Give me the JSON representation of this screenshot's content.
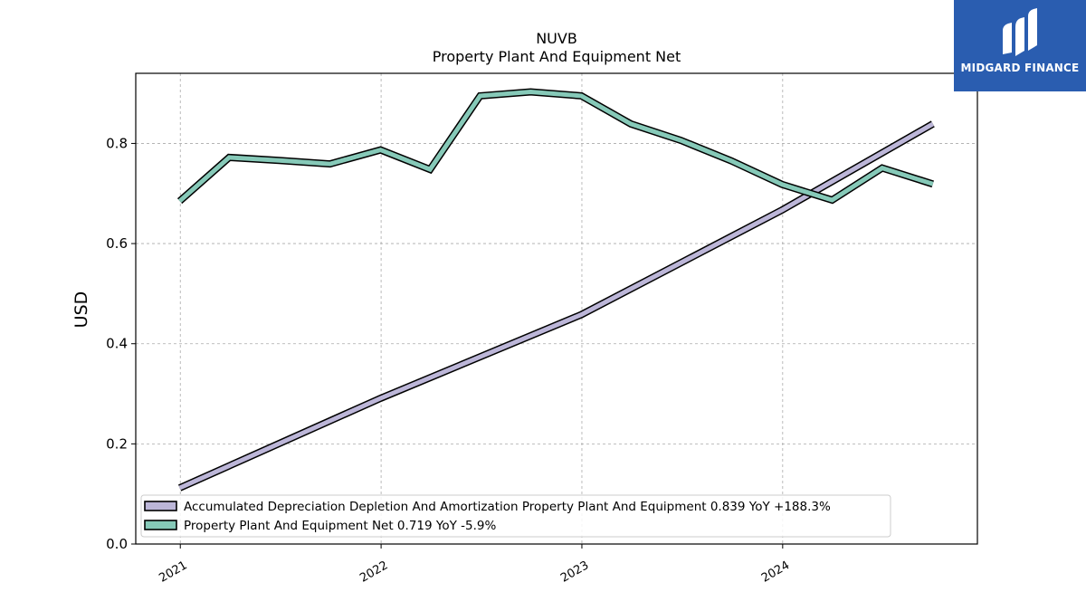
{
  "chart_data": {
    "type": "line",
    "title": "NUVB",
    "subtitle": "Property Plant And Equipment Net",
    "ylabel": "USD",
    "xlabel": "",
    "xlim": [
      "2020-10-12",
      "2024-12-20"
    ],
    "ylim": [
      0.0,
      0.94
    ],
    "yticks": [
      0.0,
      0.2,
      0.4,
      0.6,
      0.8
    ],
    "ytick_labels": [
      "0.0",
      "0.2",
      "0.4",
      "0.6",
      "0.8"
    ],
    "xticks": [
      "2021-01-01",
      "2022-01-01",
      "2023-01-01",
      "2024-01-01"
    ],
    "xtick_labels": [
      "2021",
      "2022",
      "2023",
      "2024"
    ],
    "grid": true,
    "legend_position": "lower-left",
    "series": [
      {
        "name": "Accumulated Depreciation Depletion And Amortization Property Plant And Equipment",
        "legend_label": "Accumulated Depreciation Depletion And Amortization Property Plant And Equipment  0.839 YoY +188.3%",
        "color": "#bcb6d8",
        "x": [
          "2020-12-31",
          "2021-12-31",
          "2022-12-31",
          "2023-12-31",
          "2024-09-30"
        ],
        "y": [
          0.112,
          0.291,
          0.458,
          0.667,
          0.839
        ]
      },
      {
        "name": "Property Plant And Equipment Net",
        "legend_label": "Property Plant And Equipment Net  0.719 YoY -5.9%",
        "color": "#86c9b8",
        "x": [
          "2020-12-31",
          "2021-03-31",
          "2021-06-30",
          "2021-09-30",
          "2021-12-31",
          "2022-03-31",
          "2022-06-30",
          "2022-09-30",
          "2022-12-31",
          "2023-03-31",
          "2023-06-30",
          "2023-09-30",
          "2023-12-31",
          "2024-03-31",
          "2024-06-30",
          "2024-09-30"
        ],
        "y": [
          0.685,
          0.772,
          0.766,
          0.759,
          0.787,
          0.748,
          0.895,
          0.903,
          0.895,
          0.839,
          0.806,
          0.765,
          0.718,
          0.687,
          0.751,
          0.719
        ]
      }
    ]
  },
  "logo": {
    "text": "MIDGARD FINANCE",
    "color": "#2a5db0"
  }
}
